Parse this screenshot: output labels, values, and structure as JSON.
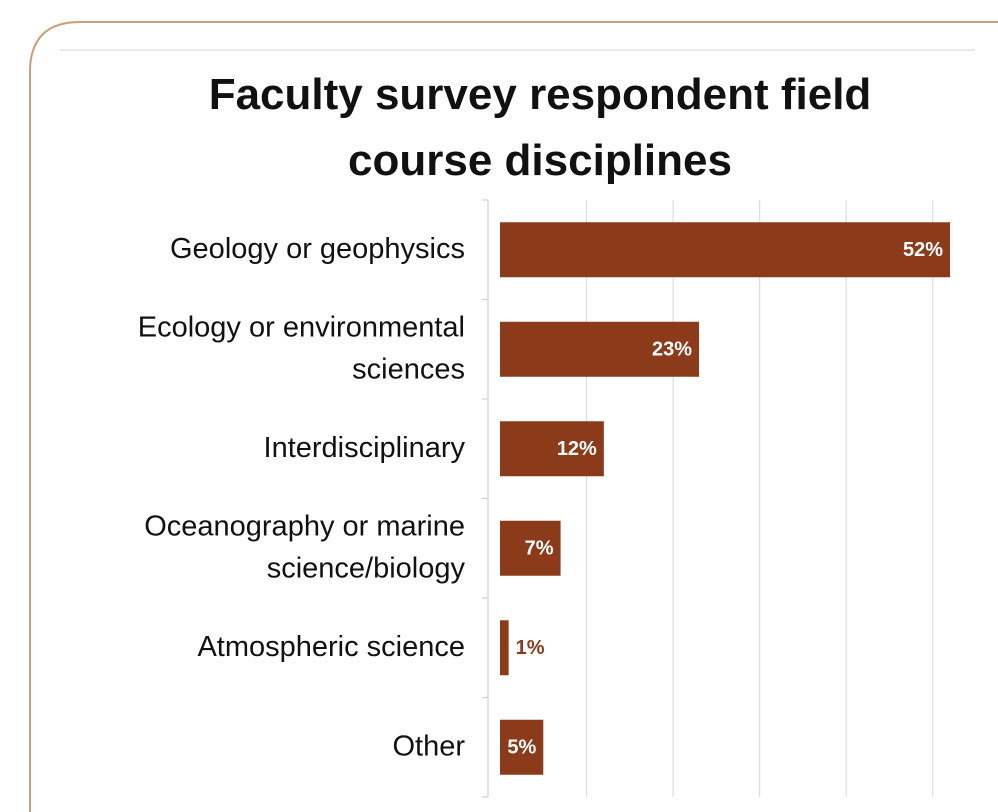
{
  "chart_data": {
    "type": "barh",
    "title": "Faculty survey respondent field course disciplines",
    "categories": [
      "Geology or geophysics",
      "Ecology or environmental sciences",
      "Interdisciplinary",
      "Oceanography or marine science/biology",
      "Atmospheric science",
      "Other"
    ],
    "values": [
      52,
      23,
      12,
      7,
      1,
      5
    ],
    "value_labels": [
      "52%",
      "23%",
      "12%",
      "7%",
      "1%",
      "5%"
    ],
    "color": "#8b3a1a",
    "xlim": [
      0,
      55
    ],
    "xticks": [
      0,
      10,
      20,
      30,
      40,
      50
    ],
    "grid": true
  }
}
